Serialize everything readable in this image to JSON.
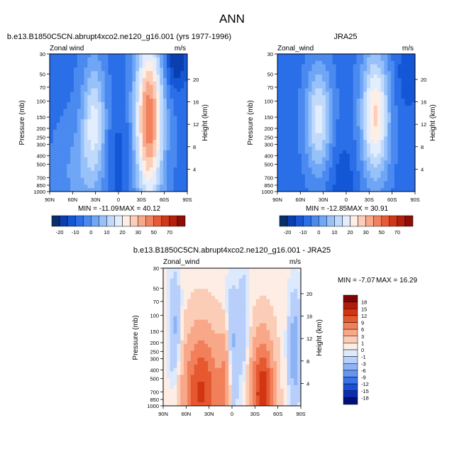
{
  "page_title": "ANN",
  "colors": {
    "cmap_wind": [
      "#08306b",
      "#0a3fb0",
      "#1457d6",
      "#2a6ee8",
      "#4a8af0",
      "#6fa6f5",
      "#97c1f9",
      "#c1dafc",
      "#e2eefd",
      "#fdeee6",
      "#fccdb8",
      "#f8a98a",
      "#f2825f",
      "#e65a38",
      "#d23717",
      "#b51f0c",
      "#8e0d05"
    ],
    "cmap_diff": [
      "#00107a",
      "#0a2eb0",
      "#1a4fd6",
      "#3a72ea",
      "#6396f2",
      "#8db3f6",
      "#b7cffa",
      "#dde9fd",
      "#fdede5",
      "#fbccb6",
      "#f8a888",
      "#f1805a",
      "#e55830",
      "#d23512",
      "#b01c0a",
      "#800303"
    ]
  },
  "chart_data": [
    {
      "type": "contour",
      "title": "b.e13.B1850C5CN.abrupt4xco2.ne120_g16.001 (yrs 1977-1996)",
      "left_label": "Zonal wind",
      "right_label": "m/s",
      "ylabel": "Pressure (mb)",
      "ylabel_right": "Height (km)",
      "x_ticks": [
        "90N",
        "60N",
        "30N",
        "0",
        "30S",
        "60S",
        "90S"
      ],
      "y_ticks": [
        "30",
        "50",
        "70",
        "100",
        "150",
        "200",
        "250",
        "300",
        "400",
        "500",
        "700",
        "850",
        "1000"
      ],
      "height_ticks": [
        "20",
        "16",
        "12",
        "8",
        "4"
      ],
      "min_label": "MIN = -11.09",
      "max_label": "MAX = 40.12",
      "min": -11.09,
      "max": 40.12,
      "colorbar_labels": [
        "-20",
        "-10",
        "0",
        "10",
        "20",
        "30",
        "50",
        "70"
      ]
    },
    {
      "type": "contour",
      "title": "JRA25",
      "left_label": "Zonal_wind",
      "right_label": "m/s",
      "ylabel": "Pressure (mb)",
      "ylabel_right": "Height (km)",
      "x_ticks": [
        "90N",
        "60N",
        "30N",
        "0",
        "30S",
        "60S",
        "90S"
      ],
      "y_ticks": [
        "30",
        "50",
        "70",
        "100",
        "150",
        "200",
        "250",
        "300",
        "400",
        "500",
        "700",
        "850",
        "1000"
      ],
      "height_ticks": [
        "20",
        "16",
        "12",
        "8",
        "4"
      ],
      "min_label": "MIN = -12.85",
      "max_label": "MAX = 30.91",
      "min": -12.85,
      "max": 30.91,
      "colorbar_labels": [
        "-20",
        "-10",
        "0",
        "10",
        "20",
        "30",
        "50",
        "70"
      ]
    },
    {
      "type": "contour",
      "title": "b.e13.B1850C5CN.abrupt4xco2.ne120_g16.001 - JRA25",
      "left_label": "Zonal_wind",
      "right_label": "m/s",
      "ylabel": "Pressure (mb)",
      "ylabel_right": "Height (km)",
      "x_ticks": [
        "90N",
        "60N",
        "30N",
        "0",
        "30S",
        "60S",
        "90S"
      ],
      "y_ticks": [
        "30",
        "50",
        "70",
        "100",
        "150",
        "200",
        "250",
        "300",
        "400",
        "500",
        "700",
        "850",
        "1000"
      ],
      "height_ticks": [
        "20",
        "16",
        "12",
        "8",
        "4"
      ],
      "min_label": "MIN =  -7.07",
      "max_label": "MAX =  16.29",
      "min": -7.07,
      "max": 16.29,
      "colorbar_labels": [
        "18",
        "15",
        "12",
        "9",
        "6",
        "3",
        "1",
        "0",
        "-1",
        "-3",
        "-6",
        "-9",
        "-12",
        "-15",
        "-18"
      ]
    }
  ]
}
